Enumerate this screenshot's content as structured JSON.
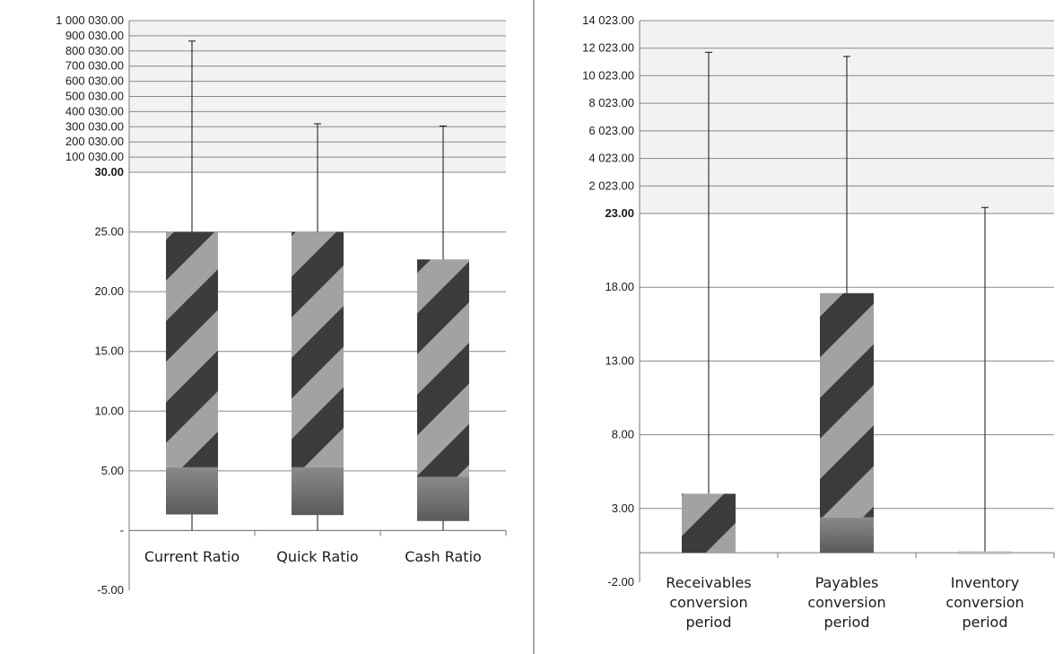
{
  "chart_data": [
    {
      "type": "bar",
      "subtype": "stacked-box-with-whiskers",
      "title": "",
      "xlabel": "",
      "ylabel": "",
      "axis_break": true,
      "lower_ylim": [
        -5,
        30
      ],
      "lower_ticks": [
        "-5.00",
        "-",
        "5.00",
        "10.00",
        "15.00",
        "20.00",
        "25.00",
        "30.00"
      ],
      "upper_ticks": [
        "100 030.00",
        "200 030.00",
        "300 030.00",
        "400 030.00",
        "500 030.00",
        "600 030.00",
        "700 030.00",
        "800 030.00",
        "900 030.00",
        "1 000 030.00"
      ],
      "categories": [
        "Current Ratio",
        "Quick Ratio",
        "Cash Ratio"
      ],
      "series": [
        {
          "role": "lower-segment",
          "low": [
            1.35,
            1.3,
            0.8
          ],
          "high": [
            5.3,
            5.3,
            4.5
          ]
        },
        {
          "role": "upper-segment",
          "low": [
            5.3,
            5.3,
            4.5
          ],
          "high": [
            25.0,
            25.0,
            22.7
          ]
        },
        {
          "role": "whisker",
          "min": [
            0.0,
            0.0,
            0.0
          ],
          "max": [
            865030,
            320030,
            305030
          ]
        }
      ],
      "grid": true
    },
    {
      "type": "bar",
      "subtype": "stacked-box-with-whiskers",
      "title": "",
      "xlabel": "",
      "ylabel": "",
      "axis_break": true,
      "lower_ylim": [
        -2,
        23
      ],
      "lower_ticks": [
        "-2.00",
        "3.00",
        "8.00",
        "13.00",
        "18.00",
        "23.00"
      ],
      "upper_ticks": [
        "2 023.00",
        "4 023.00",
        "6 023.00",
        "8 023.00",
        "10 023.00",
        "12 023.00",
        "14 023.00"
      ],
      "categories": [
        "Receivables conversion period",
        "Payables conversion period",
        "Inventory conversion period"
      ],
      "series": [
        {
          "role": "lower-segment",
          "low": [
            0.0,
            0.0,
            0.0
          ],
          "high": [
            0.0,
            2.4,
            0.0
          ]
        },
        {
          "role": "upper-segment",
          "low": [
            0.0,
            2.4,
            0.0
          ],
          "high": [
            4.0,
            17.6,
            0.0
          ]
        },
        {
          "role": "whisker",
          "min": [
            0.0,
            0.0,
            0.0
          ],
          "max": [
            11723,
            11423,
            463
          ]
        }
      ],
      "grid": true
    }
  ],
  "colors": {
    "stripe_dark": "#3c3c3c",
    "stripe_light": "#a2a2a2",
    "lower_top": "#8a8a8a",
    "lower_bottom": "#5a5a5a",
    "grid": "#888888",
    "band": "#f2f2f2",
    "divider": "#555555"
  }
}
